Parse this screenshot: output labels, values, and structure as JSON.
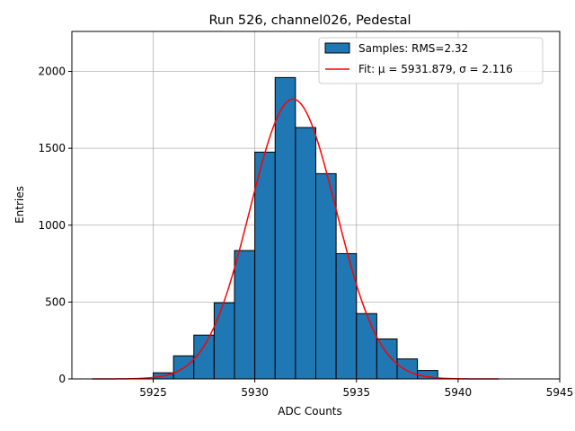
{
  "chart_data": {
    "type": "bar",
    "title": "Run 526, channel026, Pedestal",
    "xlabel": "ADC Counts",
    "ylabel": "Entries",
    "xlim": [
      5921,
      5945
    ],
    "ylim": [
      0,
      2260
    ],
    "xticks": [
      5925,
      5930,
      5935,
      5940,
      5945
    ],
    "yticks": [
      0,
      500,
      1000,
      1500,
      2000
    ],
    "grid": true,
    "legend_position": "top-right",
    "histogram": {
      "name": "Samples: RMS=2.32",
      "color": "#1f77b4",
      "edgecolor": "#000000",
      "bins": [
        {
          "x0": 5925,
          "x1": 5926,
          "count": 40
        },
        {
          "x0": 5926,
          "x1": 5927,
          "count": 150
        },
        {
          "x0": 5927,
          "x1": 5928,
          "count": 285
        },
        {
          "x0": 5928,
          "x1": 5929,
          "count": 495
        },
        {
          "x0": 5929,
          "x1": 5930,
          "count": 835
        },
        {
          "x0": 5930,
          "x1": 5931,
          "count": 1475
        },
        {
          "x0": 5931,
          "x1": 5932,
          "count": 1960
        },
        {
          "x0": 5932,
          "x1": 5933,
          "count": 1635
        },
        {
          "x0": 5933,
          "x1": 5934,
          "count": 1335
        },
        {
          "x0": 5934,
          "x1": 5935,
          "count": 815
        },
        {
          "x0": 5935,
          "x1": 5936,
          "count": 425
        },
        {
          "x0": 5936,
          "x1": 5937,
          "count": 260
        },
        {
          "x0": 5937,
          "x1": 5938,
          "count": 130
        },
        {
          "x0": 5938,
          "x1": 5939,
          "count": 55
        }
      ]
    },
    "fit": {
      "name": "Fit: μ = 5931.879, σ = 2.116",
      "color": "#ff0000",
      "mu": 5931.879,
      "sigma": 2.116,
      "amplitude": 1820,
      "x_range": [
        5922,
        5942
      ]
    }
  }
}
